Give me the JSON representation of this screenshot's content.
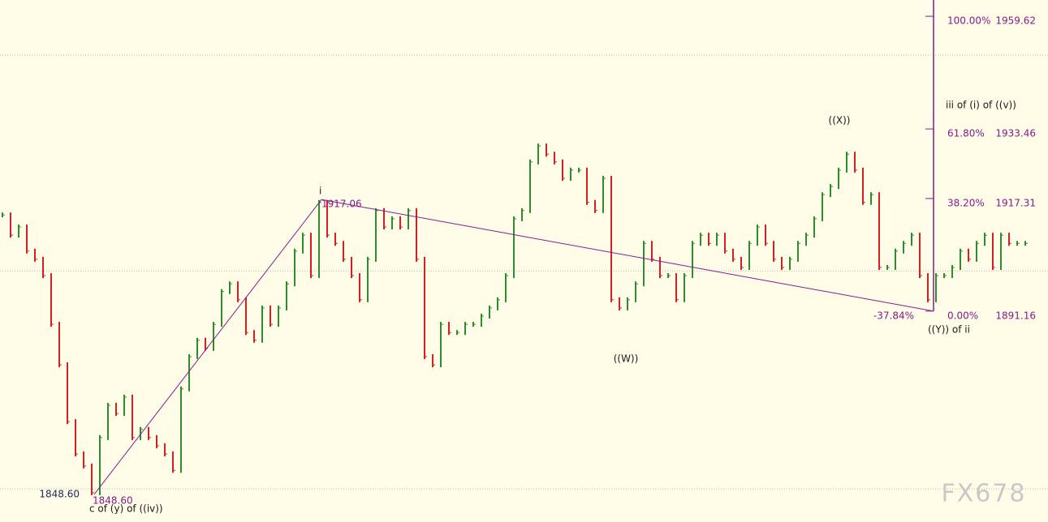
{
  "chart_data": {
    "type": "price-bars",
    "values": [
      1913.5,
      1908.8,
      1910.7,
      1905.1,
      1903.2,
      1899.4,
      1888.1,
      1878.7,
      1865.5,
      1858.0,
      1855.2,
      1849.0,
      1861.8,
      1869.3,
      1867.4,
      1871.2,
      1861.8,
      1863.7,
      1861.8,
      1859.9,
      1858.0,
      1854.2,
      1873.1,
      1880.6,
      1884.4,
      1882.5,
      1888.1,
      1895.7,
      1897.5,
      1893.8,
      1886.2,
      1884.4,
      1891.9,
      1888.1,
      1891.9,
      1897.5,
      1905.1,
      1908.8,
      1899.4,
      1916.4,
      1908.8,
      1906.9,
      1903.2,
      1899.4,
      1893.8,
      1903.2,
      1914.5,
      1910.7,
      1912.6,
      1910.7,
      1914.5,
      1903.2,
      1880.6,
      1878.7,
      1888.1,
      1886.2,
      1886.2,
      1888.1,
      1888.1,
      1890.0,
      1891.9,
      1893.8,
      1899.4,
      1912.6,
      1914.5,
      1925.8,
      1929.5,
      1927.6,
      1925.8,
      1922.0,
      1923.9,
      1923.9,
      1916.4,
      1914.5,
      1922.0,
      1893.8,
      1891.9,
      1893.8,
      1897.5,
      1906.9,
      1903.2,
      1899.4,
      1899.4,
      1893.8,
      1899.4,
      1906.9,
      1908.8,
      1906.9,
      1908.8,
      1905.1,
      1903.2,
      1901.3,
      1906.9,
      1910.7,
      1906.9,
      1903.2,
      1901.3,
      1903.2,
      1906.9,
      1908.8,
      1912.6,
      1918.2,
      1920.1,
      1923.9,
      1927.6,
      1923.9,
      1916.4,
      1918.2,
      1901.3,
      1901.3,
      1905.1,
      1906.9,
      1908.8,
      1899.4,
      1893.8,
      1899.4,
      1899.4,
      1901.3,
      1905.1,
      1903.2,
      1906.9,
      1908.8,
      1901.3,
      1908.8,
      1906.9,
      1906.9,
      1906.9
    ],
    "up_color": "#2e8b2e",
    "down_color": "#d42020",
    "ylim": [
      1842.2,
      1963.4
    ],
    "grid_lines": [
      1950.6,
      1900.5,
      1849.9
    ],
    "wave_line": {
      "x": [
        11.3,
        39.3,
        114.7
      ],
      "y": [
        1848.6,
        1917.06,
        1891.16
      ],
      "color": "#8a1a8a"
    },
    "fib_levels": [
      {
        "percent": "100.00%",
        "price": 1959.62
      },
      {
        "percent": "61.80%",
        "price": 1933.46
      },
      {
        "percent": "38.20%",
        "price": 1917.31
      },
      {
        "percent": "0.00%",
        "price": 1891.16
      }
    ],
    "annotations": {
      "wave_i": "i",
      "high_price": "1917.06",
      "low_price_left": {
        "value": 1848.6,
        "label": "1848.60"
      },
      "low_price_right": {
        "value": 1848.6,
        "label": "1848.60"
      },
      "low_label": "c of (y) of ((iv))",
      "wave_w": "((W))",
      "wave_x": "((X))",
      "wave_y": "((Y)) of ii",
      "next_wave": "iii of (i) of ((v))",
      "ratio": "-37.84%"
    },
    "watermark": "FX678"
  }
}
